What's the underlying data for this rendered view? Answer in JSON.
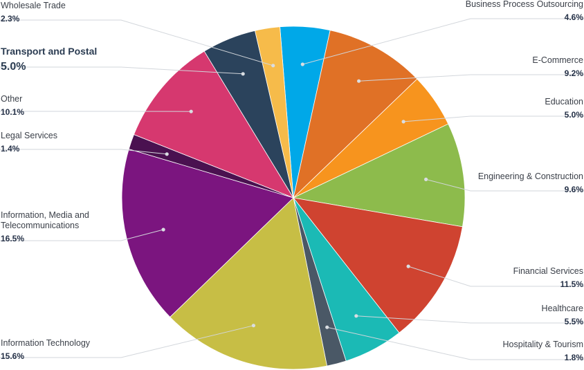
{
  "chart_data": {
    "type": "pie",
    "start_angle_deg": -4.5,
    "direction": "clockwise",
    "legend": "none",
    "slices": [
      {
        "label": "Business Process Outsourcing",
        "value_text": "4.6%",
        "value": 4.6,
        "color": "#00A8E8",
        "side": "right"
      },
      {
        "label": "E-Commerce",
        "value_text": "9.2%",
        "value": 9.2,
        "color": "#E07126",
        "side": "right"
      },
      {
        "label": "Education",
        "value_text": "5.0%",
        "value": 5.0,
        "color": "#F7941E",
        "side": "right"
      },
      {
        "label": "Engineering & Construction",
        "value_text": "9.6%",
        "value": 9.6,
        "color": "#8DBB4C",
        "side": "right"
      },
      {
        "label": "Financial Services",
        "value_text": "11.5%",
        "value": 11.5,
        "color": "#CF4330",
        "side": "right"
      },
      {
        "label": "Healthcare",
        "value_text": "5.5%",
        "value": 5.5,
        "color": "#1BBAB5",
        "side": "right"
      },
      {
        "label": "Hospitality & Tourism",
        "value_text": "1.8%",
        "value": 1.8,
        "color": "#4A5866",
        "side": "right"
      },
      {
        "label": "Information Technology",
        "value_text": "15.6%",
        "value": 15.6,
        "color": "#C7BE45",
        "side": "left"
      },
      {
        "label": "Information, Media and Telecommunications",
        "label_lines": [
          "Information, Media and",
          "Telecommunications"
        ],
        "value_text": "16.5%",
        "value": 16.5,
        "color": "#7B157F",
        "side": "left"
      },
      {
        "label": "Legal Services",
        "value_text": "1.4%",
        "value": 1.4,
        "color": "#4A1150",
        "side": "left"
      },
      {
        "label": "Other",
        "value_text": "10.1%",
        "value": 10.1,
        "color": "#D6386F",
        "side": "left"
      },
      {
        "label": "Transport and Postal",
        "value_text": "5.0%",
        "value": 5.0,
        "color": "#2B435C",
        "side": "left",
        "highlighted": true
      },
      {
        "label": "Wholesale Trade",
        "value_text": "2.3%",
        "value": 2.3,
        "color": "#F6BB4A",
        "side": "left"
      }
    ]
  }
}
